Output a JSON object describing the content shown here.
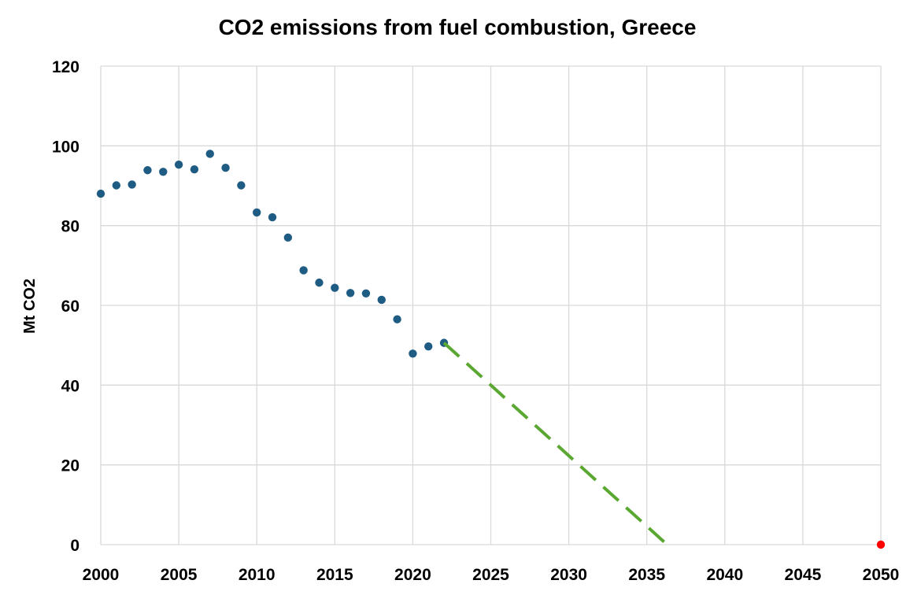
{
  "chart_data": {
    "type": "scatter",
    "title": "CO2 emissions from fuel combustion, Greece",
    "xlabel": "",
    "ylabel": "Mt CO2",
    "xlim": [
      2000,
      2050
    ],
    "ylim": [
      0,
      120
    ],
    "x_ticks": [
      "2000",
      "2005",
      "2010",
      "2015",
      "2020",
      "2025",
      "2030",
      "2035",
      "2040",
      "2045",
      "2050"
    ],
    "y_ticks": [
      "0",
      "20",
      "40",
      "60",
      "80",
      "100",
      "120"
    ],
    "grid": true,
    "legend": "none",
    "series": [
      {
        "kind": "points",
        "color": "#1f5c84",
        "x": [
          2000,
          2001,
          2002,
          2003,
          2004,
          2005,
          2006,
          2007,
          2008,
          2009,
          2010,
          2011,
          2012,
          2013,
          2014,
          2015,
          2016,
          2017,
          2018,
          2019,
          2020,
          2021,
          2022
        ],
        "y": [
          88.0,
          90.1,
          90.3,
          93.9,
          93.5,
          95.3,
          94.1,
          98.0,
          94.5,
          90.1,
          83.3,
          82.1,
          77.0,
          68.8,
          65.7,
          64.4,
          63.1,
          63.0,
          61.4,
          56.5,
          47.9,
          49.7,
          50.6
        ]
      },
      {
        "kind": "dashed-line",
        "color": "#5aa832",
        "x": [
          2022,
          2036.3
        ],
        "y": [
          50.6,
          0
        ]
      },
      {
        "kind": "points",
        "color": "#ff0000",
        "x": [
          2050
        ],
        "y": [
          0
        ]
      }
    ]
  }
}
